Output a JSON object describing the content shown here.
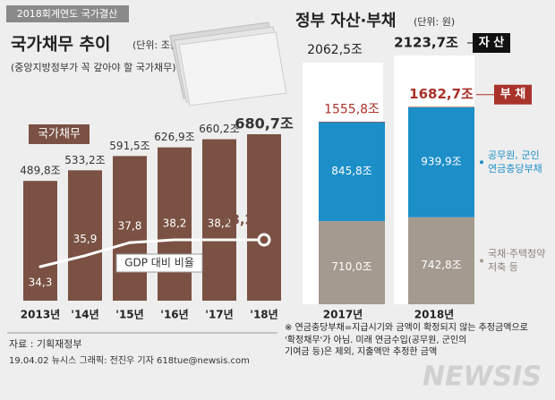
{
  "header_tag": "2018회계연도 국가결산",
  "left_title": "국가채무 추이",
  "left_unit": "(단위: 조원)",
  "left_subtitle": "(중앙지방정부가 꼭 갚아야 할 국가채무)",
  "right_title": "정부 자산·부채",
  "right_unit": "(단위: 원)",
  "chart_data": [
    {
      "type": "combo",
      "categories": [
        "2013년",
        "'14년",
        "'15년",
        "'16년",
        "'17년",
        "'18년"
      ],
      "series": [
        {
          "name": "국가채무",
          "color": "#7a5143",
          "values": [
            489.8,
            533.2,
            591.5,
            626.9,
            660.2,
            680.7
          ],
          "value_labels": [
            "489,8조",
            "533,2조",
            "591,5조",
            "626,9조",
            "660,2조",
            "680,7조"
          ]
        },
        {
          "name": "GDP 대비 비율",
          "color": "#ffffff",
          "values": [
            34.3,
            35.9,
            37.8,
            38.2,
            38.2,
            38.2
          ],
          "value_labels": [
            "34,3",
            "35,9",
            "37,8",
            "38,2",
            "38,2",
            "38,2%"
          ]
        }
      ]
    },
    {
      "type": "stacked_bar",
      "categories": [
        "2017년",
        "2018년"
      ],
      "series": [
        {
          "name": "자 산",
          "color": "#ffffff",
          "values": [
            2062.5,
            2123.7
          ],
          "value_labels": [
            "2062,5조",
            "2123,7조"
          ]
        },
        {
          "name": "부 채",
          "color": "#a8332a",
          "values": [
            1555.8,
            1682.7
          ],
          "value_labels": [
            "1555,8조",
            "1682,7조"
          ]
        },
        {
          "name": "국채·주택청약\n저축 등",
          "color": "#a59a8f",
          "values": [
            710.0,
            742.8
          ],
          "value_labels": [
            "710,0조",
            "742,8조"
          ]
        },
        {
          "name": "공무원, 군인\n연금충당부채",
          "color": "#1c8fc8",
          "values": [
            845.8,
            939.9
          ],
          "value_labels": [
            "845,8조",
            "939,9조"
          ]
        }
      ]
    }
  ],
  "footnote": "※ 연금충당부채=지급시기와 금액이 확정되지 않는 추정금액으로\n'확정채무'가 아님. 미래 연금수입(공무원, 군인의\n기여금 등)은 제외, 지출액만 추정한 금액",
  "source": "자료 : 기획재정부",
  "credit": "19.04.02 뉴시스 그래픽: 전진우 기자 618tue@newsis.com",
  "watermark": "NEWSIS"
}
